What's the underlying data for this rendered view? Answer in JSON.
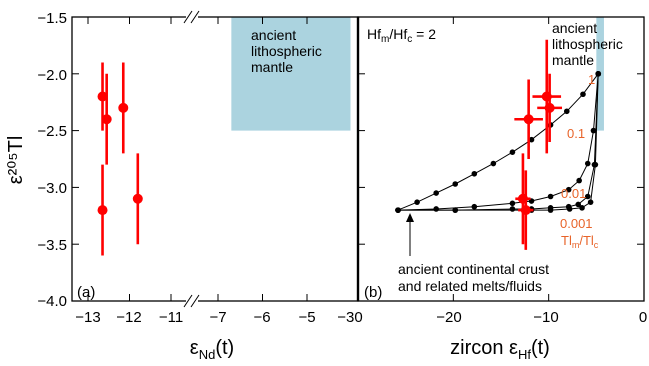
{
  "figure": {
    "y_axis_title": "ε²⁰⁵Tl",
    "y_ticks": [
      "−1.5",
      "−2.0",
      "−2.5",
      "−3.0",
      "−3.5",
      "−4.0"
    ]
  },
  "colors": {
    "error_data": "#ff0000",
    "model_curves": "#000000",
    "model_labels": "#e8642a",
    "mantle_box": "#abd3df",
    "axes": "#000000"
  },
  "chart_data": [
    {
      "type": "scatter",
      "panel_label": "(a)",
      "xlabel": "εNd(t)",
      "ylabel": "ε²⁰⁵Tl",
      "axis_break": "between −11 and −7",
      "x_ticks": [
        "−13",
        "−12",
        "−11",
        "−7",
        "−6",
        "−5"
      ],
      "ylim": [
        -4.0,
        -1.5
      ],
      "grid": false,
      "shaded_region": {
        "label": "ancient lithospheric mantle",
        "x_range": [
          -6.7,
          -4.0
        ],
        "y_range": [
          -2.5,
          -1.5
        ]
      },
      "series": [
        {
          "points": [
            {
              "x": -12.65,
              "y": -2.2,
              "yerr": [
                0.3,
                0.3
              ]
            },
            {
              "x": -12.55,
              "y": -2.4,
              "yerr": [
                0.4,
                0.4
              ]
            },
            {
              "x": -12.15,
              "y": -2.3,
              "yerr": [
                0.4,
                0.4
              ]
            },
            {
              "x": -12.65,
              "y": -3.2,
              "yerr": [
                0.4,
                0.4
              ]
            },
            {
              "x": -11.8,
              "y": -3.1,
              "yerr": [
                0.4,
                0.4
              ]
            }
          ]
        }
      ]
    },
    {
      "type": "line",
      "panel_label": "(b)",
      "xlabel": "zircon εHf(t)",
      "annotation_ratio": "Hfm/Hfc = 2",
      "x_ticks": [
        "−30",
        "−20",
        "−10",
        "0"
      ],
      "xlim": [
        -30,
        0
      ],
      "ylim": [
        -4.0,
        -1.5
      ],
      "grid": false,
      "shaded_region": {
        "label": "ancient lithospheric mantle",
        "x_range": [
          -5.0,
          -4.2
        ],
        "y_range": [
          -2.5,
          -1.5
        ]
      },
      "mixing_end_members": {
        "crust": {
          "x": -25.8,
          "y": -3.2,
          "label": "ancient continental crust and related melts/fluids"
        },
        "mantle": {
          "x": -4.8,
          "y": -2.0
        }
      },
      "ratio_axis_label": "Tlm/Tlc",
      "mixing_curves": [
        {
          "label": "1",
          "points": [
            [
              -25.8,
              -3.2
            ],
            [
              -23.8,
              -3.13
            ],
            [
              -21.8,
              -3.05
            ],
            [
              -19.8,
              -2.97
            ],
            [
              -17.8,
              -2.88
            ],
            [
              -15.8,
              -2.79
            ],
            [
              -13.8,
              -2.69
            ],
            [
              -11.8,
              -2.58
            ],
            [
              -9.8,
              -2.45
            ],
            [
              -8.1,
              -2.33
            ],
            [
              -6.4,
              -2.18
            ],
            [
              -4.8,
              -2.0
            ]
          ]
        },
        {
          "label": "0.1",
          "points": [
            [
              -25.8,
              -3.2
            ],
            [
              -21.8,
              -3.19
            ],
            [
              -17.8,
              -3.17
            ],
            [
              -13.8,
              -3.14
            ],
            [
              -11.8,
              -3.12
            ],
            [
              -9.8,
              -3.08
            ],
            [
              -7.9,
              -3.02
            ],
            [
              -6.8,
              -2.94
            ],
            [
              -5.9,
              -2.79
            ],
            [
              -5.3,
              -2.5
            ],
            [
              -4.8,
              -2.0
            ]
          ]
        },
        {
          "label": "0.01",
          "points": [
            [
              -25.8,
              -3.2
            ],
            [
              -19.8,
              -3.2
            ],
            [
              -13.8,
              -3.19
            ],
            [
              -11.8,
              -3.19
            ],
            [
              -9.8,
              -3.18
            ],
            [
              -7.9,
              -3.17
            ],
            [
              -6.9,
              -3.15
            ],
            [
              -5.9,
              -3.08
            ],
            [
              -5.2,
              -2.8
            ],
            [
              -4.8,
              -2.0
            ]
          ]
        },
        {
          "label": "0.001",
          "points": [
            [
              -25.8,
              -3.2
            ],
            [
              -19.8,
              -3.2
            ],
            [
              -11.8,
              -3.2
            ],
            [
              -9.8,
              -3.2
            ],
            [
              -7.8,
              -3.19
            ],
            [
              -6.5,
              -3.18
            ],
            [
              -5.6,
              -3.13
            ],
            [
              -5.1,
              -2.8
            ],
            [
              -4.8,
              -2.0
            ]
          ]
        }
      ],
      "series": [
        {
          "points": [
            {
              "x": -12.1,
              "y": -2.4,
              "xerr": [
                1.5,
                1.5
              ],
              "yerr": [
                0.35,
                0.35
              ]
            },
            {
              "x": -10.2,
              "y": -2.2,
              "xerr": [
                1.5,
                1.5
              ],
              "yerr": [
                0.5,
                0.5
              ]
            },
            {
              "x": -9.9,
              "y": -2.3,
              "xerr": [
                1.3,
                1.3
              ],
              "yerr": [
                0.3,
                0.3
              ]
            },
            {
              "x": -12.7,
              "y": -3.1,
              "xerr": [
                0.8,
                0.8
              ],
              "yerr": [
                0.4,
                0.4
              ]
            },
            {
              "x": -12.4,
              "y": -3.2,
              "xerr": [
                0.8,
                0.8
              ],
              "yerr": [
                0.35,
                0.35
              ]
            }
          ]
        }
      ]
    }
  ]
}
